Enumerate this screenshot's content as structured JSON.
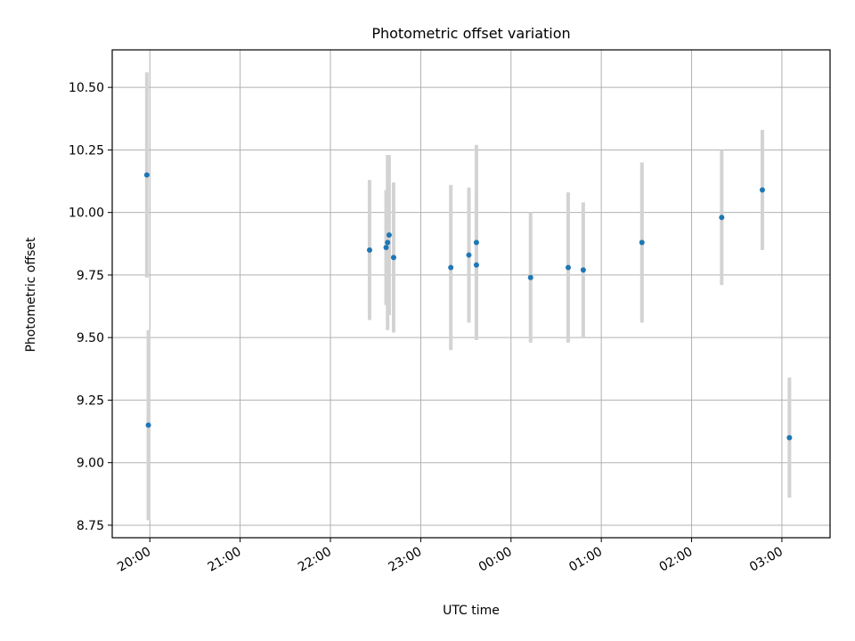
{
  "chart_data": {
    "type": "scatter",
    "title": "Photometric offset variation",
    "xlabel": "UTC time",
    "ylabel": "Photometric offset",
    "x_is_time": true,
    "xlim": [
      "19:35",
      "03:32"
    ],
    "ylim": [
      8.7,
      10.65
    ],
    "grid": true,
    "xticks": [
      {
        "time": "20:00",
        "label": "20:00"
      },
      {
        "time": "21:00",
        "label": "21:00"
      },
      {
        "time": "22:00",
        "label": "22:00"
      },
      {
        "time": "23:00",
        "label": "23:00"
      },
      {
        "time": "00:00",
        "label": "00:00"
      },
      {
        "time": "01:00",
        "label": "01:00"
      },
      {
        "time": "02:00",
        "label": "02:00"
      },
      {
        "time": "03:00",
        "label": "03:00"
      }
    ],
    "yticks": [
      {
        "value": 8.75,
        "label": "8.75"
      },
      {
        "value": 9.0,
        "label": "9.00"
      },
      {
        "value": 9.25,
        "label": "9.25"
      },
      {
        "value": 9.5,
        "label": "9.50"
      },
      {
        "value": 9.75,
        "label": "9.75"
      },
      {
        "value": 10.0,
        "label": "10.00"
      },
      {
        "value": 10.25,
        "label": "10.25"
      },
      {
        "value": 10.5,
        "label": "10.50"
      }
    ],
    "series": [
      {
        "marker_color": "#1f77b4",
        "errorbar_color": "#d3d3d3",
        "points": [
          {
            "time": "19:58",
            "y": 10.15,
            "err": 0.41
          },
          {
            "time": "19:59",
            "y": 9.15,
            "err": 0.38
          },
          {
            "time": "22:26",
            "y": 9.85,
            "err": 0.28
          },
          {
            "time": "22:37",
            "y": 9.86,
            "err": 0.23
          },
          {
            "time": "22:38",
            "y": 9.88,
            "err": 0.35
          },
          {
            "time": "22:39",
            "y": 9.91,
            "err": 0.32
          },
          {
            "time": "22:42",
            "y": 9.82,
            "err": 0.3
          },
          {
            "time": "23:20",
            "y": 9.78,
            "err": 0.33
          },
          {
            "time": "23:32",
            "y": 9.83,
            "err": 0.27
          },
          {
            "time": "23:37",
            "y": 9.88,
            "err": 0.39
          },
          {
            "time": "23:37",
            "y": 9.79,
            "err": 0.29
          },
          {
            "time": "00:13",
            "y": 9.74,
            "err": 0.26
          },
          {
            "time": "00:38",
            "y": 9.78,
            "err": 0.3
          },
          {
            "time": "00:48",
            "y": 9.77,
            "err": 0.27
          },
          {
            "time": "01:27",
            "y": 9.88,
            "err": 0.32
          },
          {
            "time": "02:20",
            "y": 9.98,
            "err": 0.27
          },
          {
            "time": "02:47",
            "y": 10.09,
            "err": 0.24
          },
          {
            "time": "03:05",
            "y": 9.1,
            "err": 0.24
          }
        ]
      }
    ]
  }
}
